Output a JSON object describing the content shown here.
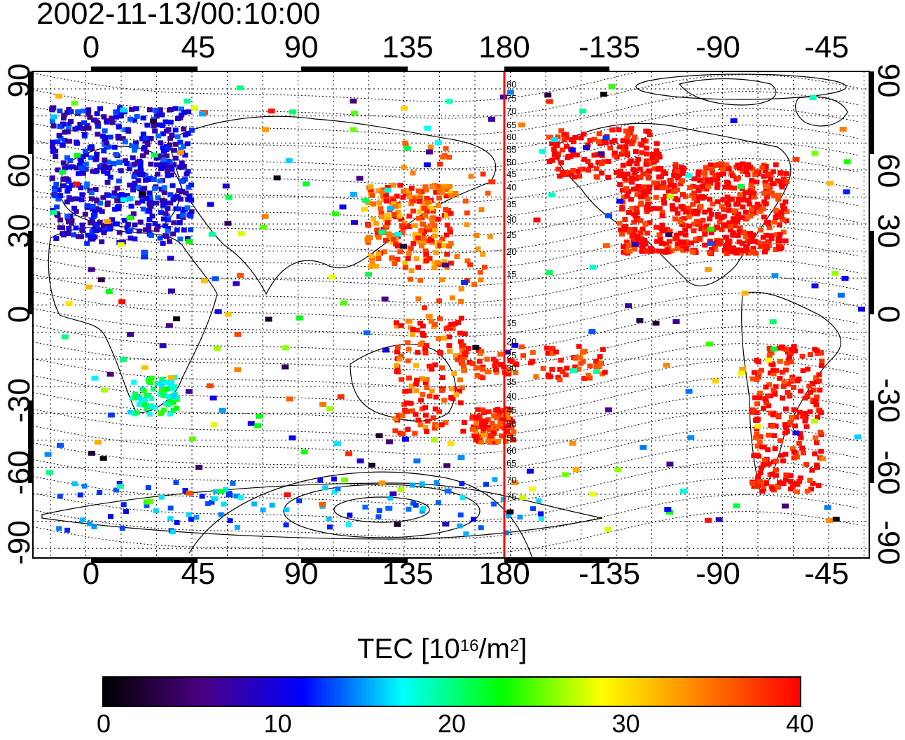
{
  "title": "2002-11-13/00:10:00",
  "lon_labels": [
    "0",
    "45",
    "90",
    "135",
    "180",
    "-135",
    "-90",
    "-45"
  ],
  "lat_labels": [
    "90",
    "60",
    "30",
    "0",
    "-30",
    "-60",
    "-90"
  ],
  "meridian_labels_north": [
    "80",
    "75",
    "70",
    "65",
    "60",
    "55",
    "50",
    "45",
    "40",
    "35",
    "30",
    "25",
    "20",
    "15"
  ],
  "meridian_labels_south": [
    "15",
    "20",
    "25",
    "30",
    "35",
    "40",
    "45",
    "50",
    "55",
    "60",
    "65",
    "70",
    "75"
  ],
  "colorbar": {
    "title_prefix": "TEC  [10",
    "title_exp1": "16",
    "title_mid": "/m",
    "title_exp2": "2",
    "title_suffix": "]",
    "min": 0,
    "max": 40,
    "ticks": [
      "0",
      "10",
      "20",
      "30",
      "40"
    ],
    "colors": [
      "#000000",
      "#4b0082",
      "#0000ff",
      "#00ffff",
      "#00ff00",
      "#ffff00",
      "#ff8000",
      "#ff0000"
    ]
  },
  "regions": [
    {
      "name": "europe",
      "tec": 10
    },
    {
      "name": "north-america",
      "tec": 40
    },
    {
      "name": "east-asia",
      "tec": 36
    },
    {
      "name": "australia-nz",
      "tec": 38
    },
    {
      "name": "south-america",
      "tec": 40
    },
    {
      "name": "africa-south",
      "tec": 20
    },
    {
      "name": "antarctica",
      "tec": 14
    }
  ]
}
